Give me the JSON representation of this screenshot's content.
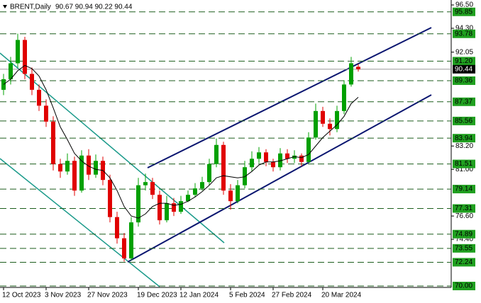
{
  "chart_data": {
    "type": "candlestick",
    "title": "BRENT,Daily",
    "quote": "90.67 90.94 90.22 90.44",
    "categories": [
      "12 Oct 2023",
      null,
      null,
      null,
      null,
      null,
      "3 Nov 2023",
      null,
      null,
      null,
      null,
      null,
      "27 Nov 2023",
      null,
      null,
      null,
      null,
      null,
      null,
      "19 Dec 2023",
      null,
      null,
      null,
      null,
      null,
      "12 Jan 2024",
      null,
      null,
      null,
      null,
      null,
      null,
      "5 Feb 2024",
      null,
      null,
      null,
      null,
      null,
      "27 Feb 2024",
      null,
      null,
      null,
      null,
      null,
      null,
      "20 Mar 2024",
      null,
      null,
      null,
      null,
      null
    ],
    "open": [
      88.5,
      89.5,
      91.0,
      93.2,
      90.0,
      88.5,
      87.0,
      85.5,
      81.5,
      80.8,
      81.8,
      79.0,
      82.3,
      80.5,
      81.8,
      80.0,
      76.5,
      74.5,
      72.6,
      76.0,
      79.5,
      79.8,
      78.6,
      76.2,
      77.8,
      77.0,
      78.0,
      78.6,
      79.2,
      79.8,
      81.5,
      83.3,
      79.0,
      78.0,
      79.5,
      81.2,
      82.0,
      82.6,
      81.7,
      81.2,
      82.5,
      82.0,
      82.3,
      81.7,
      84.0,
      86.5,
      85.3,
      84.8,
      86.5,
      89.0,
      90.67
    ],
    "high": [
      90.0,
      91.6,
      93.8,
      93.5,
      90.6,
      89.0,
      87.6,
      86.0,
      82.0,
      82.5,
      82.2,
      82.8,
      82.9,
      82.4,
      82.2,
      80.5,
      77.0,
      75.0,
      76.5,
      80.2,
      80.6,
      80.2,
      79.0,
      78.5,
      78.3,
      78.5,
      79.0,
      79.7,
      80.3,
      82.0,
      83.9,
      83.6,
      79.6,
      80.0,
      81.8,
      82.7,
      83.1,
      82.9,
      82.0,
      83.0,
      82.9,
      82.8,
      82.5,
      84.5,
      87.2,
      86.9,
      85.8,
      87.0,
      89.4,
      91.6,
      90.94
    ],
    "low": [
      88.0,
      89.0,
      90.6,
      89.5,
      88.0,
      86.5,
      85.0,
      80.9,
      80.2,
      80.5,
      78.5,
      78.8,
      80.0,
      80.2,
      79.5,
      76.0,
      74.0,
      72.3,
      72.4,
      75.6,
      79.0,
      78.2,
      75.8,
      76.0,
      76.6,
      76.8,
      77.9,
      78.4,
      79.0,
      79.5,
      81.2,
      78.6,
      77.2,
      77.8,
      79.2,
      80.8,
      81.6,
      81.3,
      80.8,
      80.9,
      81.6,
      81.6,
      81.3,
      81.6,
      83.8,
      85.0,
      84.2,
      84.5,
      86.2,
      88.8,
      90.22
    ],
    "close": [
      89.5,
      91.0,
      93.2,
      90.0,
      88.5,
      87.0,
      85.5,
      81.5,
      80.8,
      81.8,
      79.0,
      82.3,
      80.5,
      81.8,
      80.0,
      76.5,
      74.5,
      72.6,
      76.0,
      79.5,
      79.8,
      78.6,
      76.2,
      77.8,
      77.0,
      78.0,
      78.6,
      79.2,
      79.8,
      81.5,
      83.3,
      79.0,
      78.0,
      79.5,
      81.2,
      82.0,
      82.6,
      81.7,
      81.2,
      82.5,
      82.0,
      82.3,
      81.7,
      84.0,
      86.5,
      85.3,
      84.8,
      86.5,
      89.0,
      91.0,
      90.44
    ],
    "moving_average": [
      89.0,
      89.5,
      90.3,
      90.8,
      90.5,
      89.8,
      88.5,
      86.8,
      85.0,
      83.8,
      82.5,
      81.8,
      81.3,
      81.0,
      80.9,
      80.2,
      79.0,
      77.5,
      76.6,
      76.4,
      76.8,
      77.5,
      77.8,
      77.8,
      77.6,
      77.7,
      78.0,
      78.4,
      78.9,
      79.5,
      80.2,
      80.4,
      80.3,
      80.2,
      80.3,
      80.8,
      81.4,
      81.7,
      81.7,
      81.8,
      82.0,
      82.2,
      82.1,
      82.4,
      83.2,
      84.0,
      84.6,
      85.2,
      86.0,
      87.2,
      87.8
    ],
    "up_color": "#00a000",
    "down_color": "#e00000",
    "ylim": [
      70,
      96.5
    ],
    "yticks": [
      {
        "value": 96.5,
        "label": "96.50"
      },
      {
        "value": 94.3,
        "label": "94.30"
      },
      92.05,
      {
        "value": 83.2,
        "label": "83.20"
      },
      {
        "value": 81.0,
        "label": "81.00"
      },
      {
        "value": 76.6,
        "label": "76.60"
      },
      {
        "value": 74.4,
        "label": "74.40"
      }
    ],
    "levels": [
      95.85,
      93.78,
      {
        "value": 91.2,
        "label": "91.20"
      },
      89.36,
      87.37,
      85.56,
      83.94,
      81.51,
      79.14,
      77.31,
      74.89,
      73.55,
      72.24,
      {
        "value": 70,
        "label": "70.00"
      }
    ],
    "last_price": 90.44
  }
}
